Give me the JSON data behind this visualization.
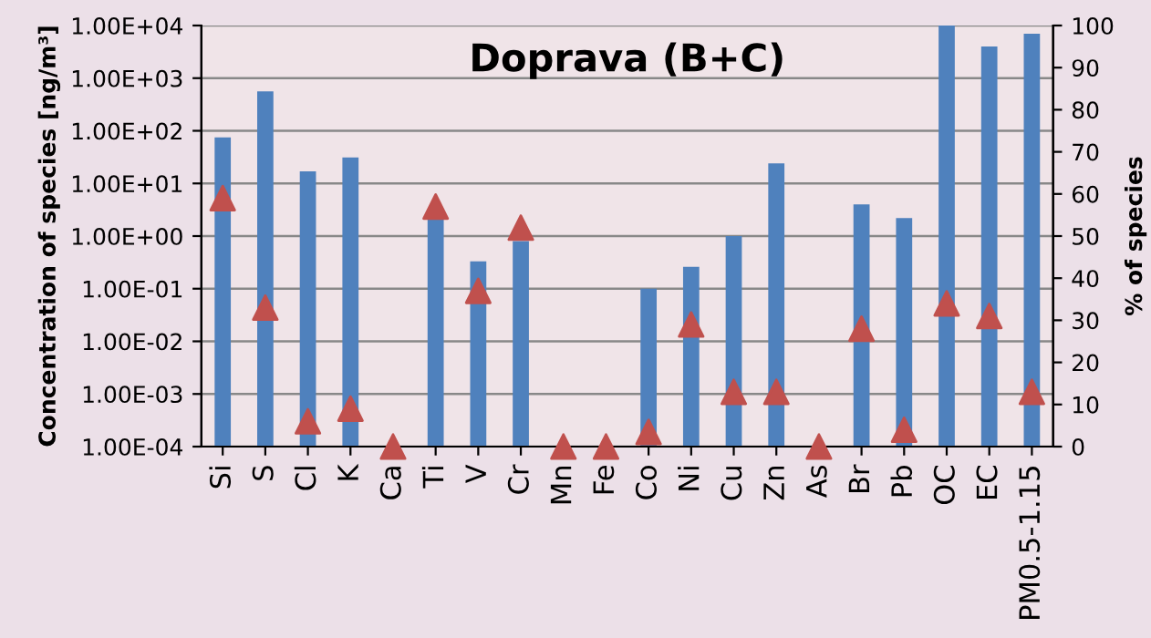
{
  "chart_data": {
    "type": "bar",
    "title": "Doprava (B+C)",
    "ylabel": "Concentration of species [ng/m³]",
    "y2label": "% of species",
    "categories": [
      "Si",
      "S",
      "Cl",
      "K",
      "Ca",
      "Ti",
      "V",
      "Cr",
      "Mn",
      "Fe",
      "Co",
      "Ni",
      "Cu",
      "Zn",
      "As",
      "Br",
      "Pb",
      "OC",
      "EC",
      "PM0.5-1.15"
    ],
    "series": [
      {
        "color": "#4f81bd",
        "values": [
          75,
          560,
          17,
          31,
          null,
          2.5,
          0.33,
          0.8,
          null,
          null,
          0.1,
          0.26,
          1.0,
          24,
          null,
          4,
          2.2,
          10000,
          4000,
          7000
        ]
      },
      {
        "type": "scatter",
        "axis": "y2",
        "color": "#c0504d",
        "marker": "triangle",
        "values": [
          59,
          33,
          6,
          9,
          0,
          57,
          37,
          52,
          0,
          0,
          3.5,
          29,
          13,
          13,
          0,
          28,
          4,
          34,
          31,
          13
        ]
      }
    ],
    "log": "y",
    "ylim": [
      0.0001,
      10000
    ],
    "yticks": [
      {
        "value": 0.0001,
        "label": "1.00E-04"
      },
      {
        "value": 0.001,
        "label": "1.00E-03"
      },
      {
        "value": 0.01,
        "label": "1.00E-02"
      },
      {
        "value": 0.1,
        "label": "1.00E-01"
      },
      {
        "value": 1,
        "label": "1.00E+00"
      },
      {
        "value": 10,
        "label": "1.00E+01"
      },
      {
        "value": 100,
        "label": "1.00E+02"
      },
      {
        "value": 1000,
        "label": "1.00E+03"
      },
      {
        "value": 10000,
        "label": "1.00E+04"
      }
    ],
    "y2lim": [
      0,
      100
    ],
    "y2ticks": [
      0,
      10,
      20,
      30,
      40,
      50,
      60,
      70,
      80,
      90,
      100
    ],
    "grid": "y",
    "legend": false
  }
}
